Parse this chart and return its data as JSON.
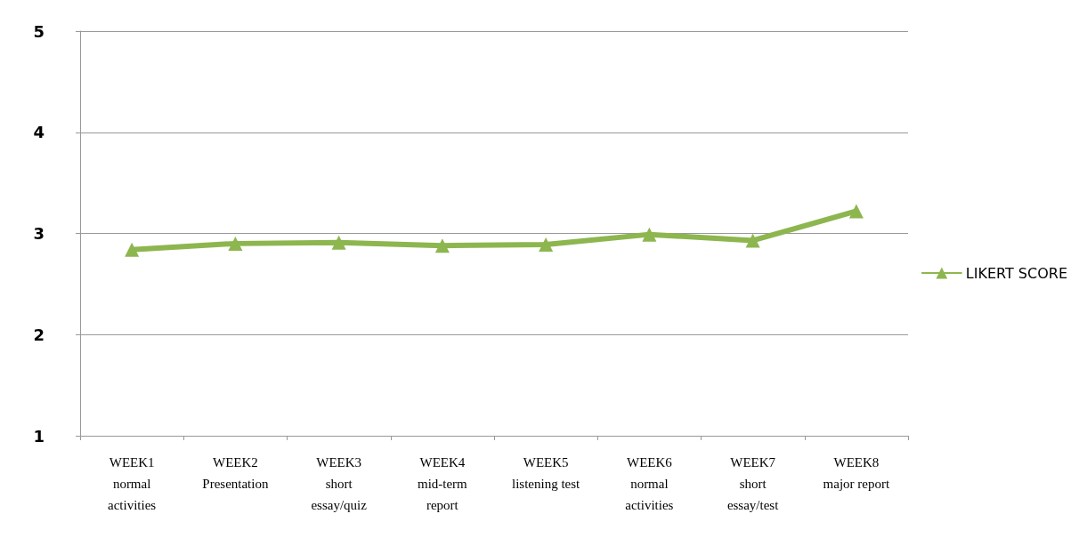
{
  "chart_data": {
    "type": "line",
    "categories": [
      "WEEK1\nnormal\nactivities",
      "WEEK2\nPresentation",
      "WEEK3\nshort\nessay/quiz",
      "WEEK4\nmid-term\nreport",
      "WEEK5\nlistening test",
      "WEEK6\nnormal\nactivities",
      "WEEK7\nshort\nessay/test",
      "WEEK8\nmajor report"
    ],
    "series": [
      {
        "name": "LIKERT SCORE",
        "color": "#8db64f",
        "values": [
          2.84,
          2.9,
          2.91,
          2.88,
          2.89,
          2.99,
          2.93,
          3.22
        ]
      }
    ],
    "ylim": [
      1,
      5
    ],
    "yticks": [
      1,
      2,
      3,
      4,
      5
    ],
    "grid": "y",
    "legend": "right",
    "marker": "triangle",
    "line_style": "solid"
  }
}
